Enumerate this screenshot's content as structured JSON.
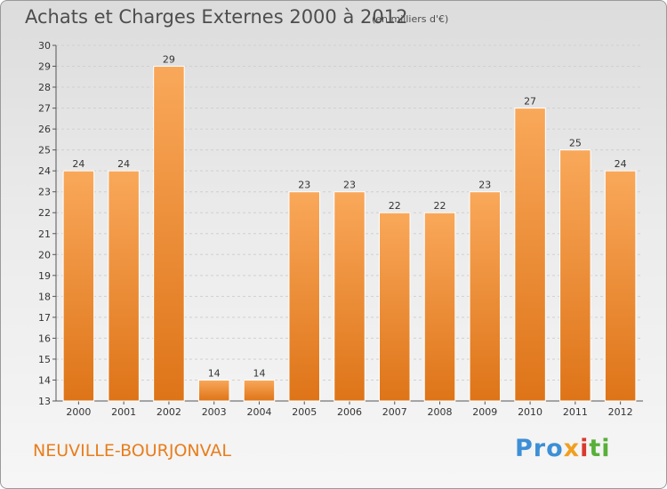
{
  "title": "Achats et Charges Externes 2000 à 2012",
  "subtitle": "(en milliers d'€)",
  "place": "NEUVILLE-BOURJONVAL",
  "logo": {
    "p1": "Pro",
    "p2": "x",
    "p3": "i",
    "p4": "ti"
  },
  "colors": {
    "bar_top": "#f9a85a",
    "bar_bottom": "#de7418",
    "grid": "#d0d0d0"
  },
  "chart_data": {
    "type": "bar",
    "categories": [
      "2000",
      "2001",
      "2002",
      "2003",
      "2004",
      "2005",
      "2006",
      "2007",
      "2008",
      "2009",
      "2010",
      "2011",
      "2012"
    ],
    "values": [
      24,
      24,
      29,
      14,
      14,
      23,
      23,
      22,
      22,
      23,
      27,
      25,
      24
    ],
    "ylim": [
      13,
      30
    ],
    "yticks": [
      13,
      14,
      15,
      16,
      17,
      18,
      19,
      20,
      21,
      22,
      23,
      24,
      25,
      26,
      27,
      28,
      29,
      30
    ],
    "grid": true
  }
}
